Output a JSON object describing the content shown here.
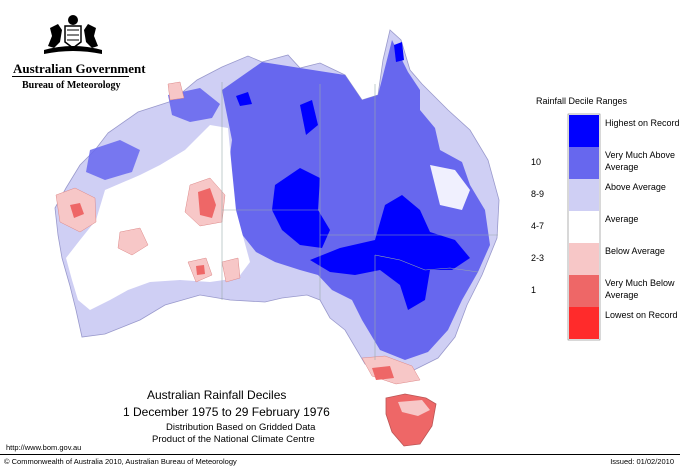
{
  "header": {
    "government": "Australian Government",
    "bureau": "Bureau of Meteorology"
  },
  "legend": {
    "title": "Rainfall Decile Ranges",
    "items": [
      {
        "code": "",
        "label": "Highest on Record",
        "color": "#0000ff"
      },
      {
        "code": "10",
        "label": "Very Much Above Average",
        "color": "#6767ee"
      },
      {
        "code": "8-9",
        "label": "Above Average",
        "color": "#cfcff4"
      },
      {
        "code": "4-7",
        "label": "Average",
        "color": "#ffffff"
      },
      {
        "code": "2-3",
        "label": "Below Average",
        "color": "#f7c7c7"
      },
      {
        "code": "1",
        "label": "Very Much Below Average",
        "color": "#ee6767"
      },
      {
        "code": "",
        "label": "Lowest on Record",
        "color": "#ff2b2b"
      }
    ]
  },
  "map": {
    "title": "Australian Rainfall Deciles",
    "period": "1 December 1975 to 29 February 1976",
    "note1": "Distribution Based on Gridded Data",
    "note2": "Product of the National Climate Centre"
  },
  "footer": {
    "url": "http://www.bom.gov.au",
    "copyright": "© Commonwealth of Australia 2010, Australian Bureau of Meteorology",
    "issued": "Issued: 01/02/2010"
  }
}
